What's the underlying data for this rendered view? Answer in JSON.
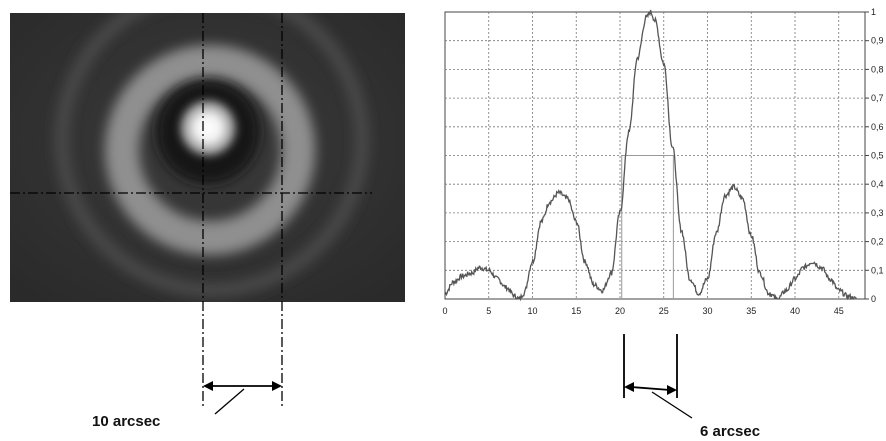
{
  "chart_data": {
    "type": "line",
    "xlim": [
      0,
      48
    ],
    "ylim": [
      0,
      1
    ],
    "x_ticks": [
      "0",
      "5",
      "10",
      "15",
      "20",
      "25",
      "30",
      "35",
      "40",
      "45"
    ],
    "y_ticks": [
      "0",
      "0,1",
      "0,2",
      "0,3",
      "0,4",
      "0,5",
      "0,6",
      "0,7",
      "0,8",
      "0,9",
      "1"
    ],
    "grid": true,
    "series": [
      {
        "x": [
          0,
          1,
          2,
          3,
          4,
          5,
          6,
          7,
          8,
          8.5,
          9,
          10,
          11,
          12,
          13,
          14,
          15,
          16,
          17,
          18,
          19,
          20,
          21,
          22,
          23,
          23.5,
          24,
          25,
          26,
          27,
          28,
          29,
          30,
          31,
          32,
          33,
          34,
          35,
          36,
          37,
          38,
          39,
          40,
          41,
          42,
          43,
          44,
          45,
          46,
          47
        ],
        "values": [
          0.02,
          0.06,
          0.08,
          0.09,
          0.11,
          0.1,
          0.07,
          0.04,
          0.01,
          0.0,
          0.02,
          0.13,
          0.27,
          0.34,
          0.37,
          0.35,
          0.27,
          0.13,
          0.05,
          0.03,
          0.09,
          0.3,
          0.58,
          0.84,
          0.98,
          1.0,
          0.97,
          0.82,
          0.53,
          0.24,
          0.07,
          0.02,
          0.07,
          0.23,
          0.36,
          0.39,
          0.35,
          0.22,
          0.09,
          0.02,
          0.0,
          0.03,
          0.07,
          0.11,
          0.13,
          0.11,
          0.07,
          0.03,
          0.01,
          0.0
        ]
      }
    ],
    "fwhm_marker": {
      "x_start": 20.2,
      "x_end": 26.1,
      "y": 0.5
    }
  },
  "annotations": {
    "image_label": "10 arcsec",
    "plot_label": "6 arcsec"
  }
}
